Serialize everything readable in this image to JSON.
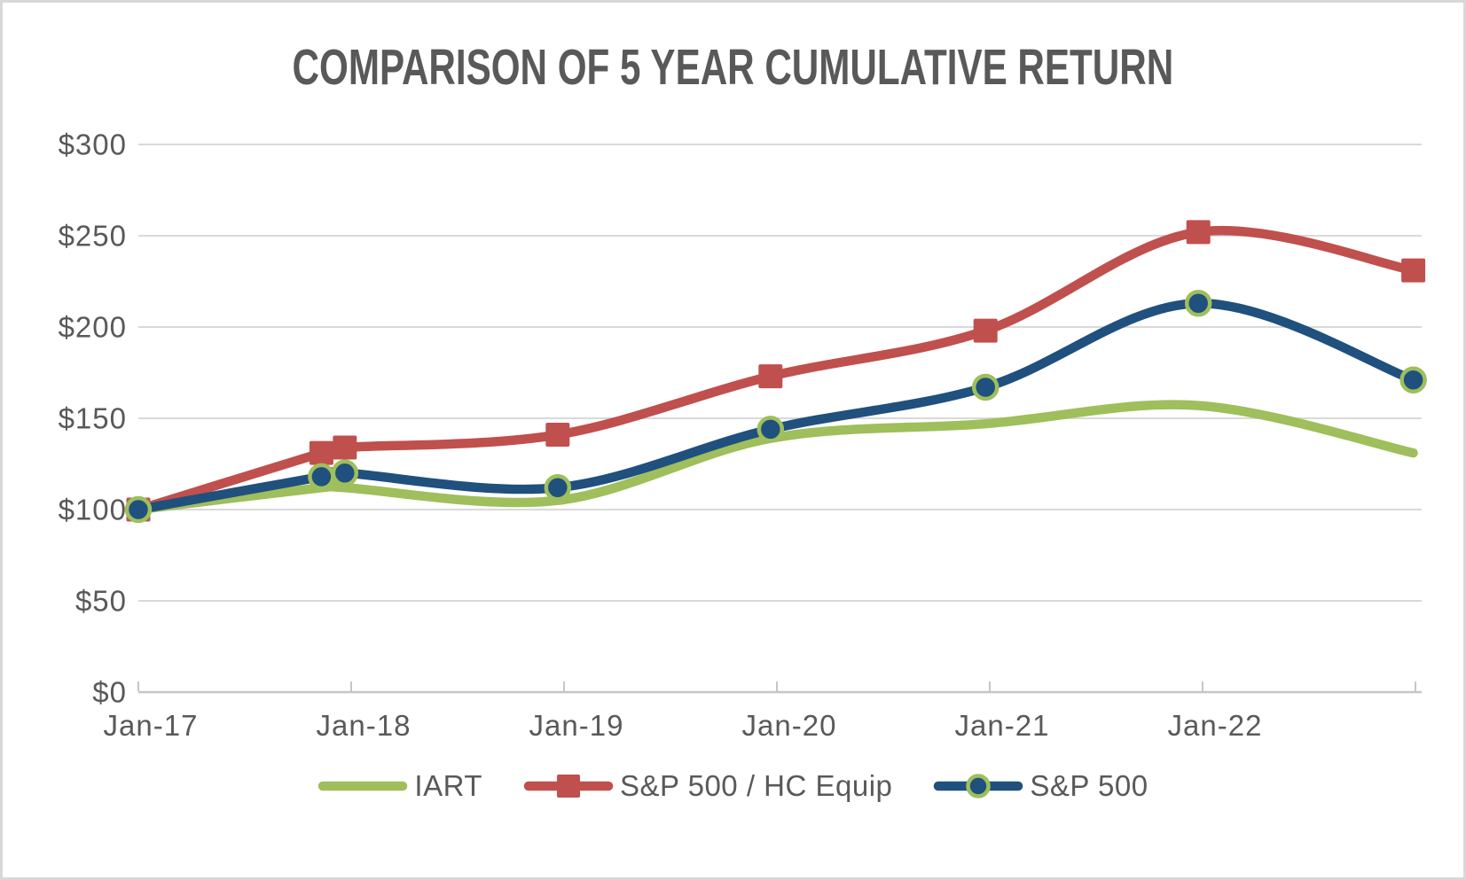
{
  "title": {
    "text": "COMPARISON OF 5 YEAR CUMULATIVE RETURN"
  },
  "styles": {
    "text_color": "#595959",
    "gridline_color": "#D9D9D9",
    "axis_color": "#C6C6C6",
    "frame_border_color": "#D8D8D8",
    "background_color": "#FFFFFF",
    "iart_green": "#9EBF5B",
    "hc_equip_red": "#C0504D",
    "sp500_blue": "#20507D"
  },
  "chart_data": {
    "type": "line",
    "title": "COMPARISON OF 5 YEAR CUMULATIVE RETURN",
    "grid": "horizontal",
    "line_style": "smooth",
    "x_axis": {
      "tick_labels": [
        "Jan-17",
        "Jan-18",
        "Jan-19",
        "Jan-20",
        "Jan-21",
        "Jan-22"
      ],
      "range_years": [
        0,
        6
      ],
      "tick_count": 7
    },
    "y_axis": {
      "tick_labels": [
        "$0",
        "$50",
        "$100",
        "$150",
        "$200",
        "$250",
        "$300"
      ],
      "tick_values": [
        0,
        50,
        100,
        150,
        200,
        250,
        300
      ],
      "range": [
        0,
        300
      ]
    },
    "x_years": [
      0,
      0.86,
      0.97,
      1.97,
      2.97,
      3.98,
      4.98,
      5.99
    ],
    "series": [
      {
        "name": "S&P 500 / HC Equip",
        "color": "#C0504D",
        "marker": "square",
        "values": [
          100,
          131,
          134,
          141,
          173,
          198,
          252,
          231
        ]
      },
      {
        "name": "IART",
        "color": "#9EBF5B",
        "marker": "none",
        "values": [
          100,
          112,
          112,
          105,
          139,
          147,
          157,
          131
        ]
      },
      {
        "name": "S&P 500",
        "color": "#20507D",
        "marker": "circle",
        "marker_border": "#9EBF5B",
        "values": [
          100,
          118,
          120,
          112,
          144,
          167,
          213,
          171
        ]
      }
    ],
    "legend": {
      "position": "bottom",
      "entries": [
        "IART",
        "S&P 500 / HC Equip",
        "S&P 500"
      ]
    }
  }
}
